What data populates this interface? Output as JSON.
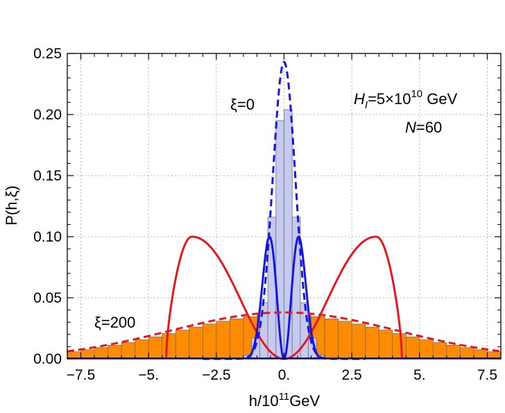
{
  "chart_data": {
    "type": "bar",
    "title": "",
    "xlabel": "h/10",
    "xlabel_exp": "11",
    "xlabel_unit": "GeV",
    "ylabel": "P(h,ξ)",
    "xlim": [
      -8.0,
      8.0
    ],
    "ylim": [
      0.0,
      0.25
    ],
    "grid": true,
    "x_ticks": [
      -7.5,
      -5.0,
      -2.5,
      0.0,
      2.5,
      5.0,
      7.5
    ],
    "x_tick_labels": [
      "−7.5",
      "−5.",
      "−2.5",
      "0.",
      "2.5",
      "5.",
      "7.5"
    ],
    "y_ticks": [
      0.0,
      0.05,
      0.1,
      0.15,
      0.2,
      0.25
    ],
    "y_tick_labels": [
      "0.00",
      "0.05",
      "0.10",
      "0.15",
      "0.20",
      "0.25"
    ],
    "colors": {
      "hist_orange": "#ff8c00",
      "hist_blue": "#c5cbf0",
      "hist_edge": "#6e6e6e",
      "red_curve": "#e8141e",
      "blue_curve": "#1414e6",
      "grid": "#b4b4b4"
    },
    "series": [
      {
        "name": "histogram ξ=200",
        "kind": "histogram",
        "bin_width": 0.5,
        "bin_centers": [
          -7.75,
          -7.25,
          -6.75,
          -6.25,
          -5.75,
          -5.25,
          -4.75,
          -4.25,
          -3.75,
          -3.25,
          -2.75,
          -2.25,
          -1.75,
          -1.25,
          -0.75,
          -0.25,
          0.25,
          0.75,
          1.25,
          1.75,
          2.25,
          2.75,
          3.25,
          3.75,
          4.25,
          4.75,
          5.25,
          5.75,
          6.25,
          6.75,
          7.25,
          7.75
        ],
        "values": [
          0.0058,
          0.0075,
          0.0092,
          0.0112,
          0.0133,
          0.0156,
          0.018,
          0.0207,
          0.0235,
          0.026,
          0.0285,
          0.0308,
          0.0328,
          0.0345,
          0.0357,
          0.0365,
          0.0365,
          0.0357,
          0.0345,
          0.0328,
          0.0308,
          0.0285,
          0.026,
          0.0235,
          0.0207,
          0.018,
          0.0156,
          0.0133,
          0.0112,
          0.0092,
          0.0075,
          0.0058
        ]
      },
      {
        "name": "histogram ξ=0",
        "kind": "histogram",
        "bin_width": 0.3,
        "bin_centers": [
          -1.35,
          -1.05,
          -0.75,
          -0.45,
          -0.15,
          0.15,
          0.45,
          0.75,
          1.05,
          1.35
        ],
        "values": [
          0.003,
          0.017,
          0.046,
          0.116,
          0.195,
          0.204,
          0.116,
          0.046,
          0.017,
          0.003
        ]
      },
      {
        "name": "red dashed (ξ=200 fit)",
        "kind": "gaussian",
        "amplitude": 0.038,
        "sigma": 4.2,
        "style": "dashed",
        "color": "red"
      },
      {
        "name": "blue dashed (ξ=0 fit)",
        "kind": "gaussian",
        "amplitude": 0.243,
        "sigma": 0.42,
        "style": "dashed",
        "color": "blue"
      },
      {
        "name": "red solid",
        "kind": "double-peak",
        "peak_x": 3.4,
        "peak_y": 0.1,
        "zero_x": 4.35,
        "color": "red"
      },
      {
        "name": "blue solid",
        "kind": "double-peak",
        "peak_x": 0.54,
        "peak_y": 0.1,
        "zero_x": 1.35,
        "color": "blue"
      }
    ],
    "annotations": {
      "xi0": "ξ=0",
      "xi200": "ξ=200",
      "hi_H": "H",
      "hi_sub": "I",
      "hi_mid": "=5×10",
      "hi_exp": "10",
      "hi_unit": " GeV",
      "n_label": "N",
      "n_value": "=60"
    }
  }
}
